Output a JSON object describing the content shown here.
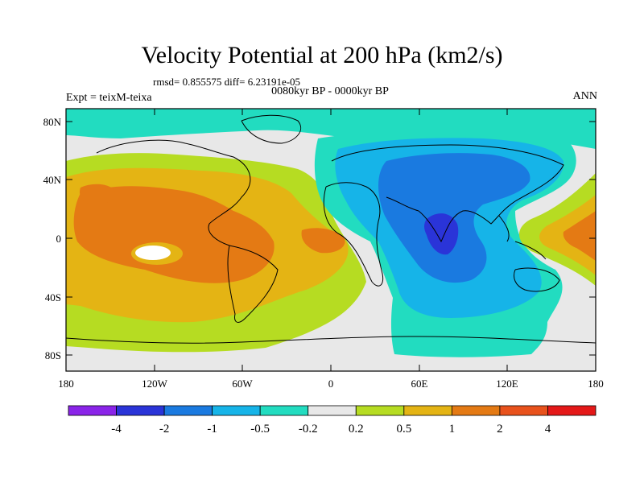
{
  "title": "Velocity Potential at 200 hPa (km2/s)",
  "stats": "rmsd= 0.855575 diff= 6.23191e-05",
  "subtitle": "0080kyr BP - 0000kyr BP",
  "experiment": "Expt = teixM-teixa",
  "season": "ANN",
  "latitude_ticks": [
    "80N",
    "40N",
    "0",
    "40S",
    "80S"
  ],
  "longitude_ticks": [
    "180",
    "120W",
    "60W",
    "0",
    "60E",
    "120E",
    "180"
  ],
  "colorbar": {
    "levels": [
      "-4",
      "-2",
      "-1",
      "-0.5",
      "-0.2",
      "0.2",
      "0.5",
      "1",
      "2",
      "4"
    ],
    "colors": [
      "#8a24e8",
      "#2a34d8",
      "#1a7ae0",
      "#16b4e8",
      "#22dcc0",
      "#e8e8e8",
      "#b6dc22",
      "#e4b414",
      "#e47a14",
      "#e8521c",
      "#e41818"
    ]
  }
}
